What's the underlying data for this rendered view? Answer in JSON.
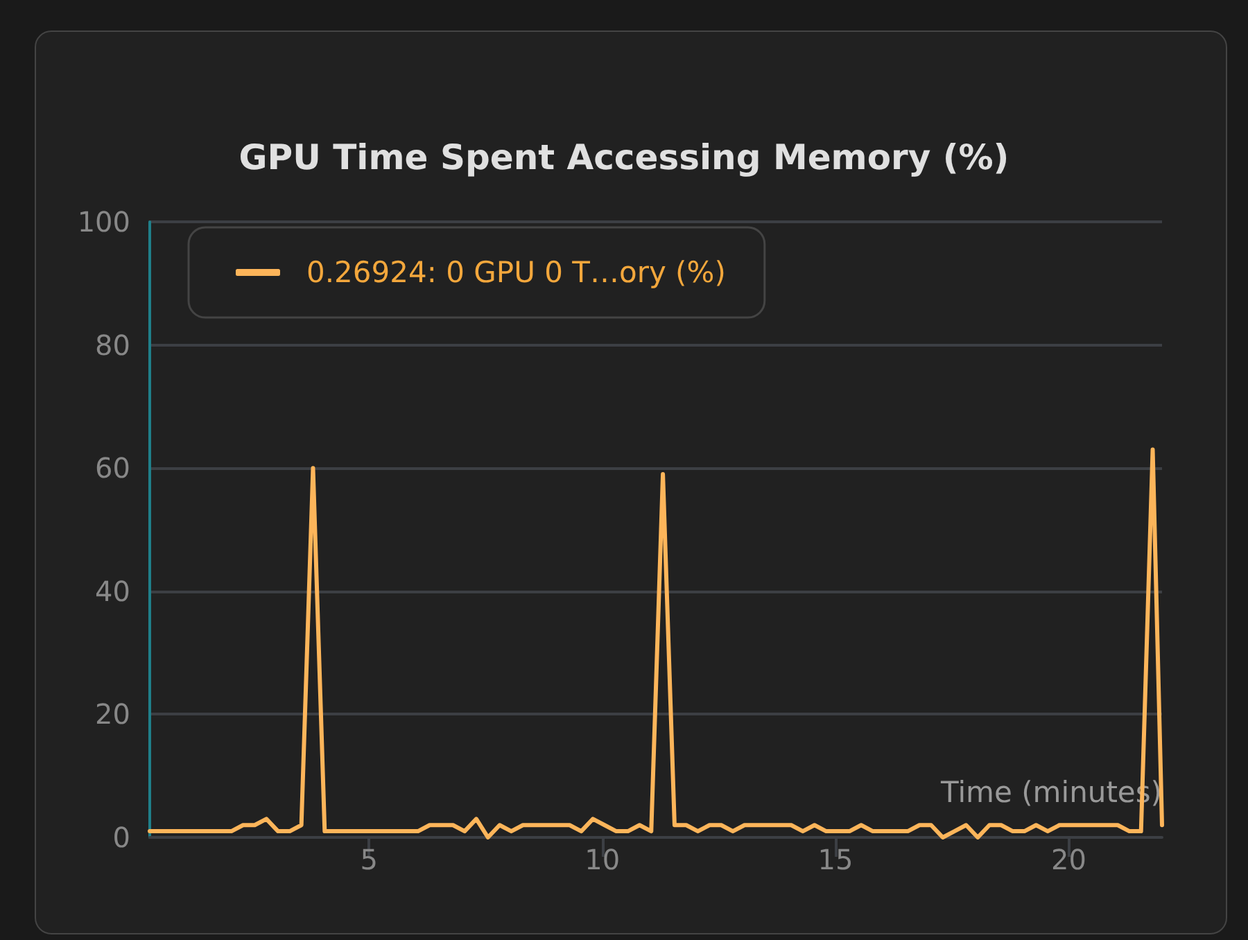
{
  "chart_data": {
    "type": "line",
    "title": "GPU Time Spent Accessing Memory (%)",
    "xlabel": "Time (minutes)",
    "x": [
      0.3,
      0.55,
      0.8,
      1.05,
      1.3,
      1.55,
      1.8,
      2.05,
      2.3,
      2.55,
      2.8,
      3.05,
      3.3,
      3.55,
      3.8,
      4.05,
      4.3,
      4.55,
      4.8,
      5.05,
      5.3,
      5.55,
      5.8,
      6.05,
      6.3,
      6.55,
      6.8,
      7.05,
      7.3,
      7.55,
      7.8,
      8.05,
      8.3,
      8.55,
      8.8,
      9.05,
      9.3,
      9.55,
      9.8,
      10.05,
      10.3,
      10.55,
      10.8,
      11.05,
      11.3,
      11.55,
      11.8,
      12.05,
      12.3,
      12.55,
      12.8,
      13.05,
      13.3,
      13.55,
      13.8,
      14.05,
      14.3,
      14.55,
      14.8,
      15.05,
      15.3,
      15.55,
      15.8,
      16.05,
      16.3,
      16.55,
      16.8,
      17.05,
      17.3,
      17.55,
      17.8,
      18.05,
      18.3,
      18.55,
      18.8,
      19.05,
      19.3,
      19.55,
      19.8,
      20.05,
      20.3,
      20.55,
      20.8,
      21.05,
      21.3,
      21.55,
      21.8,
      22.0
    ],
    "series": [
      {
        "name": "0.26924: 0 GPU 0 T…ory (%)",
        "color": "#fdb55a",
        "values": [
          1,
          1,
          1,
          1,
          1,
          1,
          1,
          1,
          2,
          2,
          3,
          1,
          1,
          2,
          60,
          1,
          1,
          1,
          1,
          1,
          1,
          1,
          1,
          1,
          2,
          2,
          2,
          1,
          3,
          0,
          2,
          1,
          2,
          2,
          2,
          2,
          2,
          1,
          3,
          2,
          1,
          1,
          2,
          1,
          59,
          2,
          2,
          1,
          2,
          2,
          1,
          2,
          2,
          2,
          2,
          2,
          1,
          2,
          1,
          1,
          1,
          2,
          1,
          1,
          1,
          1,
          2,
          2,
          0,
          1,
          2,
          0,
          2,
          2,
          1,
          1,
          2,
          1,
          2,
          2,
          2,
          2,
          2,
          2,
          1,
          1,
          63,
          2
        ]
      }
    ],
    "xlim": [
      0.3,
      22
    ],
    "xticks": [
      5,
      10,
      15,
      20
    ],
    "ylim": [
      0,
      100
    ],
    "yticks": [
      0,
      20,
      40,
      60,
      80,
      100
    ],
    "grid": "y",
    "legend": "top left",
    "marker": "none",
    "line_style": "solid"
  }
}
